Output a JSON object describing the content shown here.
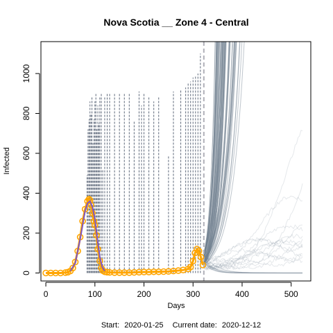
{
  "chart_data": {
    "type": "line",
    "title": "Nova Scotia __ Zone 4 - Central",
    "xlabel": "Days",
    "ylabel": "Infected",
    "footer": {
      "start_label": "Start:",
      "start_date": "2020-01-25",
      "current_label": "Current date:",
      "current_date": "2020-12-12"
    },
    "xlim": [
      -10,
      540
    ],
    "ylim": [
      -40,
      1160
    ],
    "x_ticks": [
      0,
      100,
      200,
      300,
      400,
      500
    ],
    "y_ticks": [
      0,
      200,
      400,
      600,
      800,
      1000
    ],
    "current_day": 322,
    "colors": {
      "observed": "#FFA500",
      "fit": "#7E57C2",
      "simulation": "#708090",
      "daily_cases": "#5A6577",
      "current_line": "#B0B0B8"
    },
    "series": [
      {
        "role": "observed",
        "x": [
          0,
          10,
          20,
          30,
          40,
          45,
          50,
          55,
          60,
          65,
          70,
          75,
          80,
          85,
          88,
          90,
          92,
          95,
          98,
          100,
          103,
          106,
          110,
          113,
          116,
          120,
          125,
          130,
          140,
          150,
          160,
          170,
          180,
          190,
          200,
          210,
          220,
          230,
          240,
          250,
          260,
          270,
          280,
          290,
          295,
          300,
          304,
          308,
          312,
          316,
          320
        ],
        "y": [
          0,
          0,
          0,
          0,
          2,
          4,
          10,
          25,
          55,
          110,
          180,
          260,
          320,
          360,
          370,
          365,
          340,
          300,
          260,
          240,
          190,
          120,
          60,
          25,
          12,
          6,
          4,
          3,
          2,
          2,
          2,
          2,
          3,
          4,
          5,
          5,
          6,
          6,
          7,
          8,
          10,
          12,
          15,
          20,
          30,
          60,
          100,
          120,
          110,
          80,
          40
        ]
      },
      {
        "role": "fit",
        "x": [
          50,
          60,
          70,
          80,
          85,
          90,
          95,
          100,
          105,
          110,
          115,
          120
        ],
        "y": [
          10,
          50,
          170,
          310,
          350,
          360,
          330,
          270,
          170,
          80,
          30,
          10
        ]
      }
    ],
    "daily_cases_spikes": {
      "x": [
        84,
        86,
        88,
        90,
        92,
        94,
        96,
        98,
        100,
        102,
        104,
        106,
        108,
        110,
        113,
        116,
        120,
        125,
        130,
        140,
        150,
        160,
        170,
        180,
        190,
        195,
        200,
        210,
        220,
        230,
        250,
        260,
        275,
        285,
        290,
        295,
        300,
        305,
        310,
        315
      ],
      "y": [
        490,
        720,
        770,
        860,
        800,
        880,
        650,
        770,
        860,
        900,
        720,
        840,
        750,
        880,
        900,
        520,
        880,
        900,
        900,
        900,
        900,
        900,
        900,
        760,
        910,
        840,
        900,
        880,
        860,
        880,
        590,
        910,
        920,
        930,
        950,
        960,
        980,
        990,
        1000,
        1100
      ]
    }
  }
}
